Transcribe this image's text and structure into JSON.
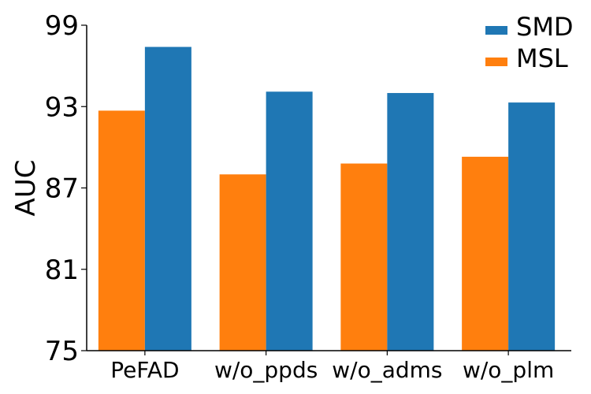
{
  "chart_data": {
    "type": "bar",
    "categories": [
      "PeFAD",
      "w/o_ppds",
      "w/o_adms",
      "w/o_plm"
    ],
    "series": [
      {
        "name": "MSL",
        "color": "#ff7f0e",
        "values": [
          92.7,
          88.0,
          88.8,
          89.3
        ]
      },
      {
        "name": "SMD",
        "color": "#1f77b4",
        "values": [
          97.4,
          94.1,
          94.0,
          93.3
        ]
      }
    ],
    "title": "",
    "xlabel": "",
    "ylabel": "AUC",
    "ylim": [
      75,
      99
    ],
    "yticks": [
      75,
      81,
      87,
      93,
      99
    ],
    "grid": false,
    "legend": {
      "position": "top-right",
      "order": [
        "SMD",
        "MSL"
      ]
    }
  }
}
